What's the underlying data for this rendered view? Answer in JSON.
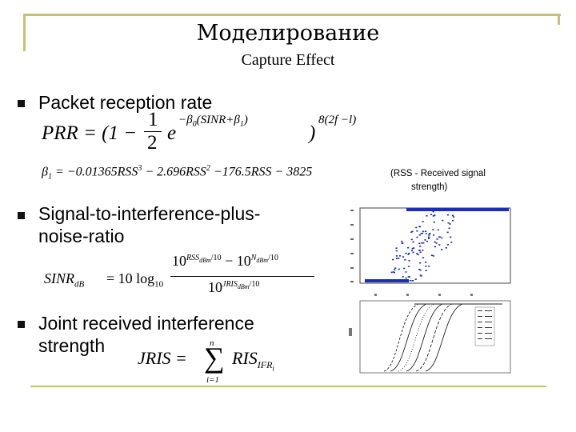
{
  "title": "Моделирование",
  "subtitle": "Capture Effect",
  "bullets": [
    {
      "line1": "Packet reception rate",
      "line2": ""
    },
    {
      "line1": "Signal-to-interference-plus-",
      "line2": "noise-ratio"
    },
    {
      "line1": "Joint received interference",
      "line2": "strength"
    }
  ],
  "formulas": {
    "prr": {
      "lhs": "PRR = (1 −",
      "num": "1",
      "den": "2",
      "e": "e",
      "exp_a": "−β",
      "exp_a_sub": "0",
      "exp_b": "(SINR+β",
      "exp_b_sub": "1",
      "exp_c": ")",
      "close": ")",
      "outer_exp": "8(2f −l)"
    },
    "beta": {
      "lhs": "β",
      "lhs_sub": "1",
      "eq": " = −0.01365RSS",
      "p1": "3",
      "t2": " − 2.696RSS",
      "p2": "2",
      "t3": " −176.5RSS − 3825"
    },
    "sinr": {
      "lhs": "SINR",
      "lhs_sub": "dB",
      "eq": " = 10 log",
      "log_sub": "10",
      "n1": "10",
      "n1_exp": "RSS",
      "n1_exp_sub": "dBm",
      "n1_exp_tail": "/10",
      "minus": " − 10",
      "n2_exp": "N",
      "n2_exp_sub": "dBm",
      "n2_exp_tail": "/10",
      "d": "10",
      "d_exp": "JRIS",
      "d_exp_sub": "dBm",
      "d_exp_tail": "/10"
    },
    "jris": {
      "lhs": "JRIS =",
      "sum_top": "n",
      "sum_bot": "i=1",
      "term": "RIS",
      "term_sub": "IFR",
      "term_sub2": "i"
    }
  },
  "note": {
    "line1": "(RSS - Received signal",
    "line2": "strength)"
  },
  "colors": {
    "frame": "#c9bf7a",
    "scatter": "#1a2fb5"
  }
}
